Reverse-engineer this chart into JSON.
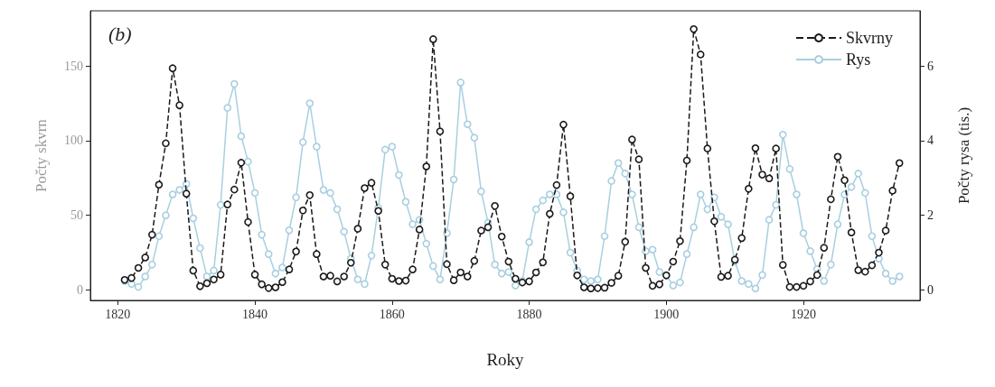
{
  "chart_data": {
    "type": "line",
    "xlabel": "Roky",
    "ylabel": "Počty skvrn",
    "y2label": "Počty rysa (tis.)",
    "annotations": [
      "(b)"
    ],
    "x": [
      1821,
      1822,
      1823,
      1824,
      1825,
      1826,
      1827,
      1828,
      1829,
      1830,
      1831,
      1832,
      1833,
      1834,
      1835,
      1836,
      1837,
      1838,
      1839,
      1840,
      1841,
      1842,
      1843,
      1844,
      1845,
      1846,
      1847,
      1848,
      1849,
      1850,
      1851,
      1852,
      1853,
      1854,
      1855,
      1856,
      1857,
      1858,
      1859,
      1860,
      1861,
      1862,
      1863,
      1864,
      1865,
      1866,
      1867,
      1868,
      1869,
      1870,
      1871,
      1872,
      1873,
      1874,
      1875,
      1876,
      1877,
      1878,
      1879,
      1880,
      1881,
      1882,
      1883,
      1884,
      1885,
      1886,
      1887,
      1888,
      1889,
      1890,
      1891,
      1892,
      1893,
      1894,
      1895,
      1896,
      1897,
      1898,
      1899,
      1900,
      1901,
      1902,
      1903,
      1904,
      1905,
      1906,
      1907,
      1908,
      1909,
      1910,
      1911,
      1912,
      1913,
      1914,
      1915,
      1916,
      1917,
      1918,
      1919,
      1920,
      1921,
      1922,
      1923,
      1924,
      1925,
      1926,
      1927,
      1928,
      1929,
      1930,
      1931,
      1932,
      1933,
      1934
    ],
    "series": [
      {
        "name": "Skvrny",
        "color": "#1a1a1a",
        "axis": "y2",
        "line_style": "dashed",
        "values": [
          0.27,
          0.32,
          0.59,
          0.87,
          1.48,
          2.82,
          3.93,
          5.94,
          4.95,
          2.58,
          0.52,
          0.1,
          0.18,
          0.28,
          0.41,
          2.29,
          2.69,
          3.41,
          1.82,
          0.41,
          0.15,
          0.05,
          0.07,
          0.21,
          0.55,
          1.03,
          2.13,
          2.54,
          0.96,
          0.36,
          0.38,
          0.23,
          0.36,
          0.73,
          1.64,
          2.73,
          2.87,
          2.12,
          0.68,
          0.3,
          0.24,
          0.25,
          0.55,
          1.62,
          3.31,
          6.72,
          4.25,
          0.69,
          0.26,
          0.47,
          0.36,
          0.78,
          1.59,
          1.68,
          2.25,
          1.43,
          0.76,
          0.3,
          0.2,
          0.23,
          0.47,
          0.74,
          2.04,
          2.81,
          4.43,
          2.51,
          0.39,
          0.07,
          0.04,
          0.05,
          0.06,
          0.19,
          0.38,
          1.29,
          4.03,
          3.5,
          0.59,
          0.11,
          0.15,
          0.39,
          0.76,
          1.31,
          3.47,
          6.99,
          6.31,
          3.79,
          1.84,
          0.35,
          0.38,
          0.81,
          1.39,
          2.71,
          3.8,
          3.09,
          2.99,
          3.79,
          0.67,
          0.08,
          0.08,
          0.11,
          0.23,
          0.4,
          1.13,
          2.43,
          3.57,
          2.94,
          1.54,
          0.53,
          0.49,
          0.66,
          1.0,
          1.59,
          2.66,
          3.4
        ]
      },
      {
        "name": "Rys",
        "color": "#a8cfe0",
        "line_style": "solid",
        "values": [
          6,
          4,
          2,
          9,
          17,
          36,
          50,
          64,
          67,
          71,
          48,
          28,
          9,
          13,
          57,
          122,
          138,
          103,
          86,
          65,
          37,
          24,
          11,
          15,
          40,
          62,
          99,
          125,
          96,
          67,
          65,
          54,
          39,
          21,
          7,
          4,
          23,
          55,
          94,
          96,
          77,
          59,
          44,
          47,
          31,
          16,
          7,
          38,
          74,
          139,
          111,
          102,
          66,
          45,
          17,
          11,
          12,
          3,
          6,
          32,
          54,
          60,
          64,
          64,
          52,
          25,
          13,
          7,
          6,
          7,
          36,
          73,
          85,
          78,
          64,
          42,
          26,
          27,
          12,
          10,
          3,
          5,
          24,
          42,
          64,
          54,
          62,
          49,
          44,
          19,
          6,
          4,
          1,
          10,
          47,
          57,
          104,
          81,
          64,
          38,
          26,
          14,
          6,
          17,
          44,
          64,
          69,
          78,
          65,
          36,
          21,
          11,
          6,
          9
        ]
      }
    ],
    "xlim": [
      1816,
      1937
    ],
    "xticks": [
      1820,
      1840,
      1860,
      1880,
      1900,
      1920
    ],
    "ylim": [
      -7,
      187
    ],
    "yticks": [
      0,
      50,
      100,
      150
    ],
    "y2lim": [
      -0.28,
      7.48
    ],
    "y2ticks": [
      0,
      2,
      4,
      6
    ],
    "marker": "circle",
    "legend": "top right",
    "grid": false
  }
}
